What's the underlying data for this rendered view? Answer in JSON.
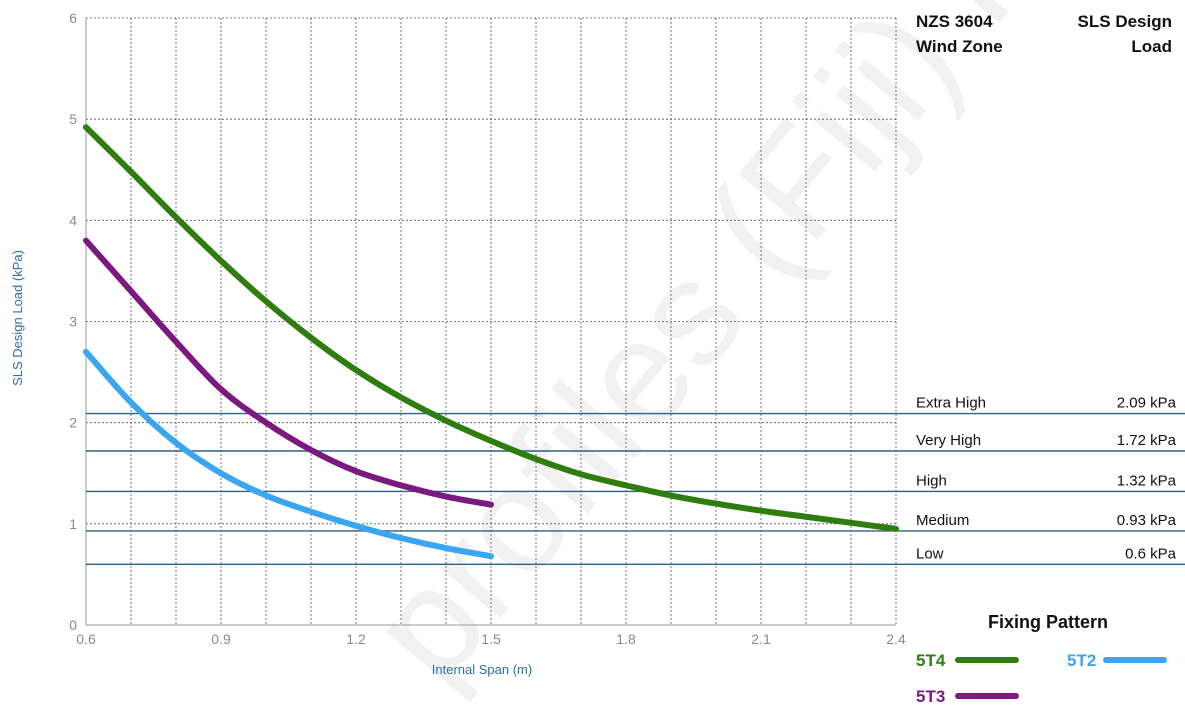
{
  "chart_data": {
    "type": "line",
    "xlabel": "Internal Span (m)",
    "ylabel": "SLS Design Load (kPa)",
    "xlim": [
      0.6,
      2.4
    ],
    "ylim": [
      0,
      6
    ],
    "x_ticks": [
      "0.6",
      "0.9",
      "1.2",
      "1.5",
      "1.8",
      "2.1",
      "2.4"
    ],
    "y_ticks": [
      "0",
      "1",
      "2",
      "3",
      "4",
      "5",
      "6"
    ],
    "grid": true,
    "series": [
      {
        "name": "5T4",
        "color": "#2e7d0e",
        "points": [
          [
            0.6,
            4.92
          ],
          [
            0.7,
            4.48
          ],
          [
            0.8,
            4.03
          ],
          [
            0.9,
            3.6
          ],
          [
            1.0,
            3.2
          ],
          [
            1.1,
            2.84
          ],
          [
            1.2,
            2.52
          ],
          [
            1.3,
            2.25
          ],
          [
            1.4,
            2.02
          ],
          [
            1.5,
            1.82
          ],
          [
            1.6,
            1.64
          ],
          [
            1.7,
            1.49
          ],
          [
            1.8,
            1.38
          ],
          [
            1.9,
            1.28
          ],
          [
            2.0,
            1.2
          ],
          [
            2.1,
            1.13
          ],
          [
            2.2,
            1.07
          ],
          [
            2.3,
            1.01
          ],
          [
            2.4,
            0.95
          ]
        ]
      },
      {
        "name": "5T3",
        "color": "#7b1a7e",
        "points": [
          [
            0.6,
            3.8
          ],
          [
            0.7,
            3.3
          ],
          [
            0.8,
            2.8
          ],
          [
            0.9,
            2.33
          ],
          [
            1.0,
            2.0
          ],
          [
            1.1,
            1.73
          ],
          [
            1.2,
            1.52
          ],
          [
            1.3,
            1.38
          ],
          [
            1.4,
            1.27
          ],
          [
            1.5,
            1.19
          ]
        ]
      },
      {
        "name": "5T2",
        "color": "#3aa5f0",
        "points": [
          [
            0.6,
            2.7
          ],
          [
            0.7,
            2.2
          ],
          [
            0.8,
            1.8
          ],
          [
            0.9,
            1.5
          ],
          [
            1.0,
            1.28
          ],
          [
            1.1,
            1.12
          ],
          [
            1.2,
            0.98
          ],
          [
            1.3,
            0.86
          ],
          [
            1.4,
            0.76
          ],
          [
            1.5,
            0.68
          ]
        ]
      }
    ],
    "reference_lines": {
      "color": "#2b5f8e",
      "lines": [
        {
          "zone": "Extra High",
          "value": 2.09,
          "label": "2.09 kPa"
        },
        {
          "zone": "Very High",
          "value": 1.72,
          "label": "1.72 kPa"
        },
        {
          "zone": "High",
          "value": 1.32,
          "label": "1.32 kPa"
        },
        {
          "zone": "Medium",
          "value": 0.93,
          "label": "0.93 kPa"
        },
        {
          "zone": "Low",
          "value": 0.6,
          "label": "0.6 kPa"
        }
      ]
    }
  },
  "table_header": {
    "col1_line1": "NZS 3604",
    "col1_line2": "Wind Zone",
    "col2_line1": "SLS Design",
    "col2_line2": "Load"
  },
  "legend": {
    "title": "Fixing Pattern"
  },
  "watermark": "profiles (Fiji) Pte"
}
